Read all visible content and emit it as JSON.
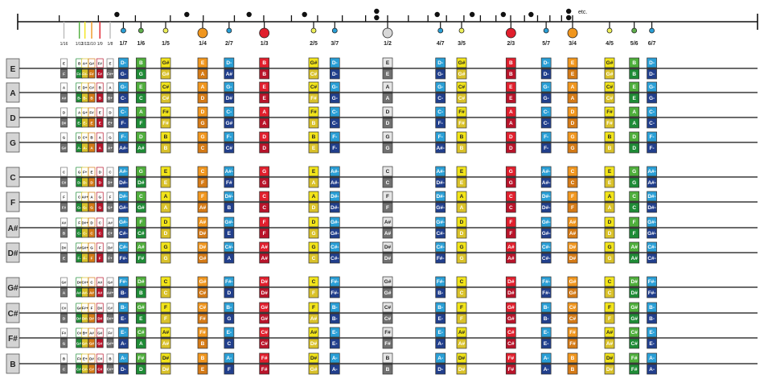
{
  "ruler": {
    "etc_label": "etc."
  },
  "colors": {
    "gray": {
      "top": "#e6e6e6",
      "bottom": "#707070",
      "node": "#d8d8d8",
      "top_text": "#222222"
    },
    "red": {
      "top": "#e01f2d",
      "bottom": "#b8142a",
      "node": "#e01f2d",
      "top_text": "#ffffff"
    },
    "orange": {
      "top": "#f0961e",
      "bottom": "#d47a16",
      "node": "#f0961e",
      "top_text": "#ffffff"
    },
    "yellow": {
      "top": "#f2e41a",
      "bottom": "#d9c12a",
      "node": "#eef05a",
      "top_text": "#222222"
    },
    "green": {
      "top": "#4fae3c",
      "bottom": "#1f8b36",
      "node": "#5fae4c",
      "top_text": "#ffffff"
    },
    "blue": {
      "top": "#2a9fd6",
      "bottom": "#213f8c",
      "node": "#2a9fd6",
      "top_text": "#ffffff"
    }
  },
  "columns": [
    {
      "label": "1/16",
      "color": "gray",
      "small": true
    },
    {
      "label": "1/12",
      "color": "green",
      "small": true
    },
    {
      "label": "1/11",
      "color": "yellow",
      "small": true
    },
    {
      "label": "1/10",
      "color": "orange",
      "small": true
    },
    {
      "label": "1/9",
      "color": "red",
      "small": true
    },
    {
      "label": "1/8",
      "color": "gray",
      "small": true
    },
    {
      "label": "1/7",
      "color": "blue"
    },
    {
      "label": "1/6",
      "color": "green"
    },
    {
      "label": "1/5",
      "color": "yellow"
    },
    {
      "label": "1/4",
      "color": "orange"
    },
    {
      "label": "2/7",
      "color": "blue"
    },
    {
      "label": "1/3",
      "color": "red"
    },
    {
      "label": "2/5",
      "color": "yellow"
    },
    {
      "label": "3/7",
      "color": "blue"
    },
    {
      "label": "1/2",
      "color": "gray"
    },
    {
      "label": "4/7",
      "color": "blue"
    },
    {
      "label": "3/5",
      "color": "yellow"
    },
    {
      "label": "2/3",
      "color": "red"
    },
    {
      "label": "5/7",
      "color": "blue"
    },
    {
      "label": "3/4",
      "color": "orange"
    },
    {
      "label": "4/5",
      "color": "yellow"
    },
    {
      "label": "5/6",
      "color": "green"
    },
    {
      "label": "6/7",
      "color": "blue"
    }
  ],
  "strings": [
    {
      "name": "E",
      "top": [
        "E",
        "B",
        "A+",
        "G#",
        "F#",
        "E",
        "D-",
        "B",
        "G#",
        "E",
        "D-",
        "B",
        "G#",
        "D-",
        "E",
        "D-",
        "G#",
        "B",
        "D-",
        "E",
        "G#",
        "B",
        "D-"
      ],
      "bottom": [
        "F",
        "F#-",
        "F#-",
        "F#",
        "F#",
        "F#+",
        "G-",
        "G",
        "G#",
        "A",
        "A#",
        "B",
        "C#",
        "D-",
        "E",
        "G-",
        "G#",
        "B",
        "D-",
        "E",
        "G#",
        "B",
        "D-"
      ]
    },
    {
      "name": "A",
      "top": [
        "A",
        "E",
        "D+",
        "C#",
        "B",
        "A",
        "G-",
        "E",
        "C#",
        "A",
        "G-",
        "E",
        "C#",
        "G-",
        "A",
        "G-",
        "C#",
        "E",
        "G-",
        "A",
        "C#",
        "E",
        "G-"
      ],
      "bottom": [
        "A#",
        "B-",
        "B-",
        "B",
        "B",
        "B+",
        "C-",
        "C",
        "C#",
        "D",
        "D#",
        "E",
        "F#",
        "G-",
        "A",
        "C-",
        "C#",
        "E",
        "G-",
        "A",
        "C#",
        "E",
        "G-"
      ]
    },
    {
      "name": "D",
      "top": [
        "D",
        "A",
        "G+",
        "F#",
        "E",
        "D",
        "C-",
        "A",
        "F#",
        "D",
        "C-",
        "A",
        "F#",
        "C-",
        "D",
        "C-",
        "F#",
        "A",
        "C-",
        "D",
        "F#",
        "A",
        "C-"
      ],
      "bottom": [
        "D#",
        "E-",
        "E-",
        "E",
        "E",
        "E+",
        "F-",
        "F",
        "F#",
        "G",
        "G#",
        "A",
        "B",
        "C-",
        "D",
        "F-",
        "F#",
        "A",
        "C-",
        "D",
        "F#",
        "A",
        "C-"
      ]
    },
    {
      "name": "G",
      "top": [
        "G",
        "D",
        "C+",
        "B",
        "A",
        "G",
        "F-",
        "D",
        "B",
        "G",
        "F-",
        "D",
        "B",
        "F-",
        "G",
        "F-",
        "B",
        "D",
        "F-",
        "G",
        "B",
        "D",
        "F-"
      ],
      "bottom": [
        "G#",
        "A-",
        "A-",
        "A",
        "A",
        "A+",
        "A#-",
        "A#",
        "B",
        "C",
        "C#",
        "D",
        "E",
        "F-",
        "G",
        "A#-",
        "B",
        "D",
        "F-",
        "G",
        "B",
        "D",
        "F-"
      ]
    },
    {
      "name": "C",
      "top": [
        "C",
        "G",
        "F+",
        "E",
        "D",
        "C",
        "A#-",
        "G",
        "E",
        "C",
        "A#-",
        "G",
        "E",
        "A#-",
        "C",
        "A#-",
        "E",
        "G",
        "A#-",
        "C",
        "E",
        "G",
        "A#-"
      ],
      "bottom": [
        "C#",
        "D-",
        "D-",
        "D",
        "D",
        "D+",
        "D#-",
        "D#",
        "E",
        "F",
        "F#",
        "G",
        "A",
        "A#-",
        "C",
        "D#-",
        "E",
        "G",
        "A#-",
        "C",
        "E",
        "G",
        "A#-"
      ]
    },
    {
      "name": "F",
      "top": [
        "F",
        "C",
        "A#+",
        "A",
        "G",
        "F",
        "D#-",
        "C",
        "A",
        "F",
        "D#-",
        "C",
        "A",
        "D#-",
        "F",
        "D#-",
        "A",
        "C",
        "D#-",
        "F",
        "A",
        "C",
        "D#-"
      ],
      "bottom": [
        "F#",
        "G-",
        "G-",
        "G",
        "G",
        "G+",
        "G#-",
        "G#",
        "A",
        "A#",
        "B",
        "C",
        "D",
        "D#-",
        "F",
        "G#-",
        "A",
        "C",
        "D#-",
        "F",
        "A",
        "C",
        "D#-"
      ]
    },
    {
      "name": "A#",
      "top": [
        "A#",
        "F",
        "D#+",
        "D",
        "C",
        "A#",
        "G#-",
        "F",
        "D",
        "A#",
        "G#-",
        "F",
        "D",
        "G#-",
        "A#",
        "G#-",
        "D",
        "F",
        "G#-",
        "A#",
        "D",
        "F",
        "G#-"
      ],
      "bottom": [
        "B",
        "C-",
        "C-",
        "C",
        "C",
        "C+",
        "C#-",
        "C#",
        "D",
        "D#",
        "E",
        "F",
        "G",
        "G#-",
        "A#",
        "C#-",
        "D",
        "F",
        "G#-",
        "A#",
        "D",
        "F",
        "G#-"
      ]
    },
    {
      "name": "D#",
      "top": [
        "D#",
        "A#",
        "G#+",
        "G",
        "F",
        "D#",
        "C#-",
        "A#",
        "G",
        "D#",
        "C#-",
        "A#",
        "G",
        "C#-",
        "D#",
        "C#-",
        "G",
        "A#",
        "C#-",
        "D#",
        "G",
        "A#",
        "C#-"
      ],
      "bottom": [
        "E",
        "F-",
        "F-",
        "F",
        "F",
        "F+",
        "F#-",
        "F#",
        "G",
        "G#",
        "A",
        "A#",
        "C",
        "C#-",
        "D#",
        "F#-",
        "G",
        "A#",
        "C#-",
        "D#",
        "G",
        "A#",
        "C#-"
      ]
    },
    {
      "name": "G#",
      "top": [
        "G#",
        "D#",
        "C#+",
        "C",
        "A#",
        "G#",
        "F#-",
        "D#",
        "C",
        "G#",
        "F#-",
        "D#",
        "C",
        "F#-",
        "G#",
        "F#-",
        "C",
        "D#",
        "F#-",
        "G#",
        "C",
        "D#",
        "F#-"
      ],
      "bottom": [
        "A",
        "A#-",
        "A#-",
        "A#",
        "A#",
        "A#+",
        "B-",
        "B",
        "C",
        "C#",
        "D",
        "D#",
        "F",
        "F#-",
        "G#",
        "B-",
        "C",
        "D#",
        "F#-",
        "G#",
        "C",
        "D#",
        "F#-"
      ]
    },
    {
      "name": "C#",
      "top": [
        "C#",
        "G#",
        "F#+",
        "F",
        "D#",
        "C#",
        "B-",
        "G#",
        "F",
        "C#",
        "B-",
        "G#",
        "F",
        "B-",
        "C#",
        "B-",
        "F",
        "G#",
        "B-",
        "C#",
        "F",
        "G#",
        "B-"
      ],
      "bottom": [
        "D",
        "D#-",
        "D#-",
        "D#",
        "D#",
        "D#+",
        "E-",
        "E",
        "F",
        "F#",
        "G",
        "G#",
        "A#",
        "B-",
        "C#",
        "E-",
        "F",
        "G#",
        "B-",
        "C#",
        "F",
        "G#",
        "B-"
      ]
    },
    {
      "name": "F#",
      "top": [
        "F#",
        "C#",
        "B+",
        "A#",
        "G#",
        "F#",
        "E-",
        "C#",
        "A#",
        "F#",
        "E-",
        "C#",
        "A#",
        "E-",
        "F#",
        "E-",
        "A#",
        "C#",
        "E-",
        "F#",
        "A#",
        "C#",
        "E-"
      ],
      "bottom": [
        "G",
        "G#-",
        "G#-",
        "G#",
        "G#",
        "G#+",
        "A-",
        "A",
        "A#",
        "B",
        "C",
        "C#",
        "D#",
        "E-",
        "F#",
        "A-",
        "A#",
        "C#",
        "E-",
        "F#",
        "A#",
        "C#",
        "E-"
      ]
    },
    {
      "name": "B",
      "top": [
        "B",
        "F#",
        "E+",
        "D#",
        "C#",
        "B",
        "A-",
        "F#",
        "D#",
        "B",
        "A-",
        "F#",
        "D#",
        "A-",
        "B",
        "A-",
        "D#",
        "F#",
        "A-",
        "B",
        "D#",
        "F#",
        "A-"
      ],
      "bottom": [
        "C",
        "C#-",
        "C#-",
        "C#",
        "C#",
        "C#+",
        "D-",
        "D",
        "D#",
        "E",
        "F",
        "F#",
        "G#",
        "A-",
        "B",
        "D-",
        "D#",
        "F#",
        "A-",
        "B",
        "D#",
        "F#",
        "A-"
      ]
    }
  ]
}
